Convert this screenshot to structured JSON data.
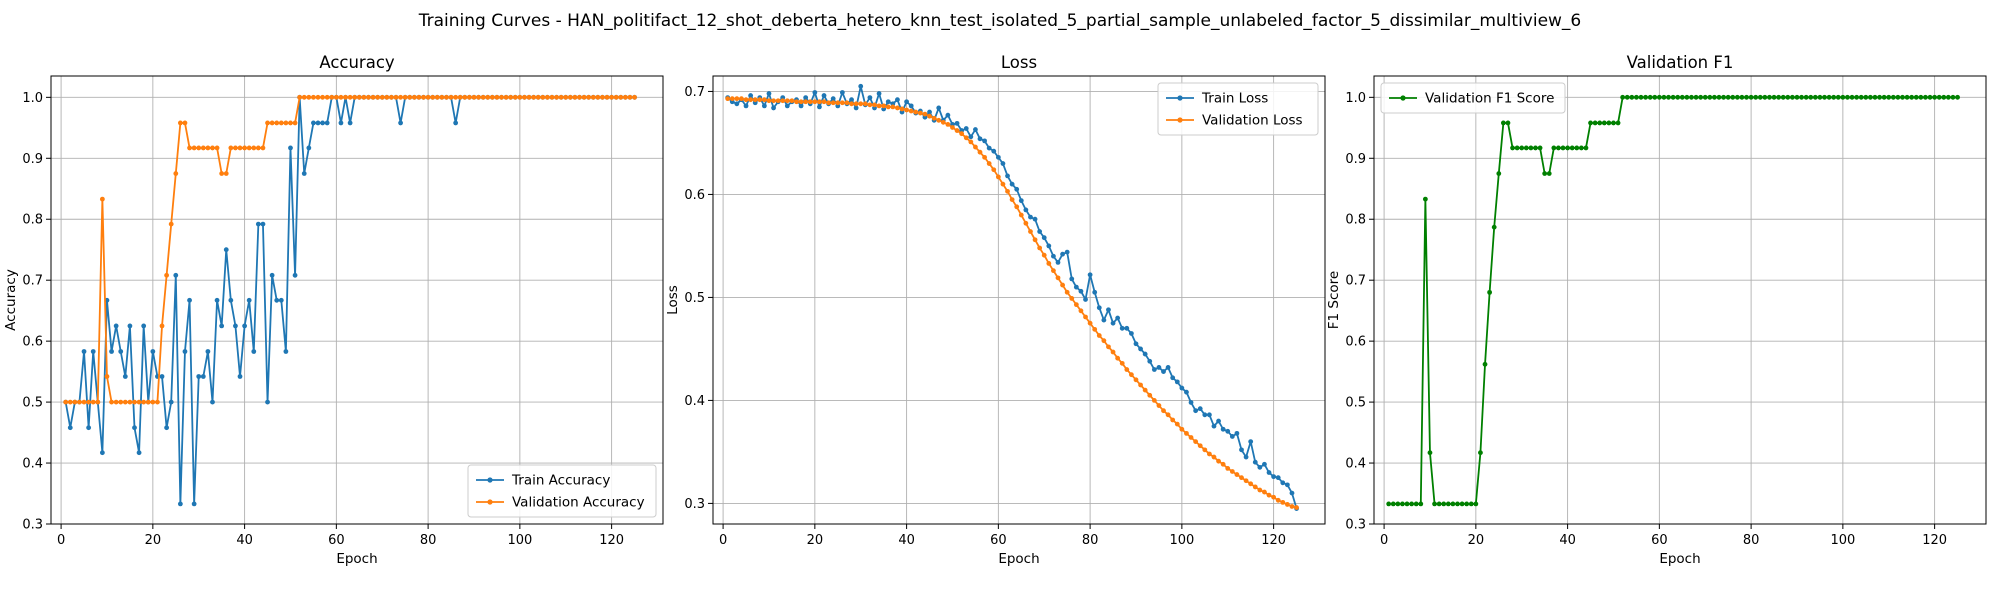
{
  "figure": {
    "title": "Training Curves - HAN_politifact_12_shot_deberta_hetero_knn_test_isolated_5_partial_sample_unlabeled_factor_5_dissimilar_multiview_6"
  },
  "chart_data": [
    {
      "type": "line",
      "title": "Accuracy",
      "xlabel": "Epoch",
      "ylabel": "Accuracy",
      "xlim": [
        -2.2,
        131.2
      ],
      "ylim": [
        0.3,
        1.035
      ],
      "xticks": [
        0,
        20,
        40,
        60,
        80,
        100,
        120
      ],
      "yticks": [
        0.3,
        0.4,
        0.5,
        0.6,
        0.7,
        0.8,
        0.9,
        1.0
      ],
      "ytick_labels": [
        "0.3",
        "0.4",
        "0.5",
        "0.6",
        "0.7",
        "0.8",
        "0.9",
        "1.0"
      ],
      "grid": true,
      "legend_position": "lower-right",
      "x_start": 1,
      "series": [
        {
          "name": "Train Accuracy",
          "color": "#1f77b4",
          "values": [
            0.5,
            0.458,
            0.5,
            0.5,
            0.583,
            0.458,
            0.583,
            0.5,
            0.417,
            0.667,
            0.583,
            0.625,
            0.583,
            0.542,
            0.625,
            0.458,
            0.417,
            0.625,
            0.5,
            0.583,
            0.542,
            0.542,
            0.458,
            0.5,
            0.708,
            0.333,
            0.583,
            0.667,
            0.333,
            0.542,
            0.542,
            0.583,
            0.5,
            0.667,
            0.625,
            0.75,
            0.667,
            0.625,
            0.542,
            0.625,
            0.667,
            0.583,
            0.792,
            0.792,
            0.5,
            0.708,
            0.667,
            0.667,
            0.583,
            0.917,
            0.708,
            1.0,
            0.875,
            0.917,
            0.958,
            0.958,
            0.958,
            0.958,
            1.0,
            1.0,
            0.958,
            1.0,
            0.958,
            1.0,
            1.0,
            1.0,
            1.0,
            1.0,
            1.0,
            1.0,
            1.0,
            1.0,
            1.0,
            0.958,
            1.0,
            1.0,
            1.0,
            1.0,
            1.0,
            1.0,
            1.0,
            1.0,
            1.0,
            1.0,
            1.0,
            0.958,
            1.0,
            1.0,
            1.0,
            1.0,
            1.0,
            1.0,
            1.0,
            1.0,
            1.0,
            1.0,
            1.0,
            1.0,
            1.0,
            1.0,
            1.0,
            1.0,
            1.0,
            1.0,
            1.0,
            1.0,
            1.0,
            1.0,
            1.0,
            1.0,
            1.0,
            1.0,
            1.0,
            1.0,
            1.0,
            1.0,
            1.0,
            1.0,
            1.0,
            1.0,
            1.0,
            1.0,
            1.0,
            1.0,
            1.0
          ]
        },
        {
          "name": "Validation Accuracy",
          "color": "#ff7f0e",
          "values": [
            0.5,
            0.5,
            0.5,
            0.5,
            0.5,
            0.5,
            0.5,
            0.5,
            0.833,
            0.542,
            0.5,
            0.5,
            0.5,
            0.5,
            0.5,
            0.5,
            0.5,
            0.5,
            0.5,
            0.5,
            0.5,
            0.625,
            0.708,
            0.792,
            0.875,
            0.958,
            0.958,
            0.917,
            0.917,
            0.917,
            0.917,
            0.917,
            0.917,
            0.917,
            0.875,
            0.875,
            0.917,
            0.917,
            0.917,
            0.917,
            0.917,
            0.917,
            0.917,
            0.917,
            0.958,
            0.958,
            0.958,
            0.958,
            0.958,
            0.958,
            0.958,
            1.0,
            1.0,
            1.0,
            1.0,
            1.0,
            1.0,
            1.0,
            1.0,
            1.0,
            1.0,
            1.0,
            1.0,
            1.0,
            1.0,
            1.0,
            1.0,
            1.0,
            1.0,
            1.0,
            1.0,
            1.0,
            1.0,
            1.0,
            1.0,
            1.0,
            1.0,
            1.0,
            1.0,
            1.0,
            1.0,
            1.0,
            1.0,
            1.0,
            1.0,
            1.0,
            1.0,
            1.0,
            1.0,
            1.0,
            1.0,
            1.0,
            1.0,
            1.0,
            1.0,
            1.0,
            1.0,
            1.0,
            1.0,
            1.0,
            1.0,
            1.0,
            1.0,
            1.0,
            1.0,
            1.0,
            1.0,
            1.0,
            1.0,
            1.0,
            1.0,
            1.0,
            1.0,
            1.0,
            1.0,
            1.0,
            1.0,
            1.0,
            1.0,
            1.0,
            1.0,
            1.0,
            1.0,
            1.0,
            1.0
          ]
        }
      ]
    },
    {
      "type": "line",
      "title": "Loss",
      "xlabel": "Epoch",
      "ylabel": "Loss",
      "xlim": [
        -2.2,
        131.2
      ],
      "ylim": [
        0.28,
        0.715
      ],
      "xticks": [
        0,
        20,
        40,
        60,
        80,
        100,
        120
      ],
      "yticks": [
        0.3,
        0.4,
        0.5,
        0.6,
        0.7
      ],
      "ytick_labels": [
        "0.3",
        "0.4",
        "0.5",
        "0.6",
        "0.7"
      ],
      "grid": true,
      "legend_position": "upper-right",
      "x_start": 1,
      "series": [
        {
          "name": "Train Loss",
          "color": "#1f77b4",
          "values": [
            0.694,
            0.69,
            0.688,
            0.692,
            0.686,
            0.696,
            0.689,
            0.694,
            0.686,
            0.698,
            0.684,
            0.69,
            0.694,
            0.686,
            0.69,
            0.692,
            0.686,
            0.694,
            0.688,
            0.699,
            0.685,
            0.696,
            0.688,
            0.693,
            0.686,
            0.699,
            0.688,
            0.692,
            0.684,
            0.705,
            0.687,
            0.694,
            0.684,
            0.698,
            0.683,
            0.69,
            0.688,
            0.692,
            0.68,
            0.69,
            0.686,
            0.679,
            0.681,
            0.675,
            0.68,
            0.672,
            0.684,
            0.672,
            0.677,
            0.668,
            0.669,
            0.662,
            0.664,
            0.656,
            0.663,
            0.654,
            0.652,
            0.645,
            0.642,
            0.636,
            0.63,
            0.618,
            0.61,
            0.605,
            0.594,
            0.585,
            0.578,
            0.576,
            0.564,
            0.558,
            0.55,
            0.54,
            0.534,
            0.542,
            0.544,
            0.518,
            0.51,
            0.506,
            0.498,
            0.522,
            0.505,
            0.49,
            0.478,
            0.488,
            0.475,
            0.48,
            0.47,
            0.47,
            0.465,
            0.455,
            0.45,
            0.445,
            0.438,
            0.43,
            0.432,
            0.428,
            0.432,
            0.422,
            0.418,
            0.412,
            0.408,
            0.398,
            0.39,
            0.392,
            0.386,
            0.386,
            0.375,
            0.38,
            0.372,
            0.37,
            0.365,
            0.368,
            0.352,
            0.345,
            0.36,
            0.34,
            0.335,
            0.338,
            0.33,
            0.326,
            0.325,
            0.32,
            0.318,
            0.31,
            0.295
          ]
        },
        {
          "name": "Validation Loss",
          "color": "#ff7f0e",
          "values": [
            0.693,
            0.693,
            0.693,
            0.693,
            0.692,
            0.692,
            0.692,
            0.692,
            0.692,
            0.691,
            0.691,
            0.691,
            0.691,
            0.691,
            0.691,
            0.69,
            0.69,
            0.69,
            0.69,
            0.69,
            0.69,
            0.69,
            0.689,
            0.689,
            0.689,
            0.689,
            0.689,
            0.688,
            0.688,
            0.688,
            0.688,
            0.687,
            0.687,
            0.686,
            0.686,
            0.685,
            0.685,
            0.684,
            0.683,
            0.682,
            0.681,
            0.68,
            0.679,
            0.678,
            0.676,
            0.674,
            0.672,
            0.67,
            0.668,
            0.665,
            0.662,
            0.659,
            0.655,
            0.651,
            0.646,
            0.641,
            0.636,
            0.63,
            0.624,
            0.617,
            0.61,
            0.603,
            0.595,
            0.588,
            0.58,
            0.572,
            0.564,
            0.556,
            0.548,
            0.541,
            0.533,
            0.526,
            0.519,
            0.512,
            0.505,
            0.499,
            0.493,
            0.487,
            0.481,
            0.475,
            0.469,
            0.463,
            0.458,
            0.452,
            0.447,
            0.441,
            0.436,
            0.43,
            0.425,
            0.42,
            0.415,
            0.41,
            0.405,
            0.4,
            0.395,
            0.39,
            0.386,
            0.381,
            0.377,
            0.372,
            0.368,
            0.364,
            0.36,
            0.356,
            0.352,
            0.348,
            0.345,
            0.341,
            0.338,
            0.334,
            0.331,
            0.328,
            0.325,
            0.322,
            0.319,
            0.316,
            0.313,
            0.311,
            0.308,
            0.306,
            0.303,
            0.301,
            0.299,
            0.297,
            0.296
          ]
        }
      ]
    },
    {
      "type": "line",
      "title": "Validation F1",
      "xlabel": "Epoch",
      "ylabel": "F1 Score",
      "xlim": [
        -2.2,
        131.2
      ],
      "ylim": [
        0.3,
        1.035
      ],
      "xticks": [
        0,
        20,
        40,
        60,
        80,
        100,
        120
      ],
      "yticks": [
        0.3,
        0.4,
        0.5,
        0.6,
        0.7,
        0.8,
        0.9,
        1.0
      ],
      "ytick_labels": [
        "0.3",
        "0.4",
        "0.5",
        "0.6",
        "0.7",
        "0.8",
        "0.9",
        "1.0"
      ],
      "grid": true,
      "legend_position": "upper-left",
      "x_start": 1,
      "series": [
        {
          "name": "Validation F1 Score",
          "color": "#008000",
          "values": [
            0.333,
            0.333,
            0.333,
            0.333,
            0.333,
            0.333,
            0.333,
            0.333,
            0.833,
            0.417,
            0.333,
            0.333,
            0.333,
            0.333,
            0.333,
            0.333,
            0.333,
            0.333,
            0.333,
            0.333,
            0.417,
            0.562,
            0.68,
            0.787,
            0.875,
            0.958,
            0.958,
            0.917,
            0.917,
            0.917,
            0.917,
            0.917,
            0.917,
            0.917,
            0.875,
            0.875,
            0.917,
            0.917,
            0.917,
            0.917,
            0.917,
            0.917,
            0.917,
            0.917,
            0.958,
            0.958,
            0.958,
            0.958,
            0.958,
            0.958,
            0.958,
            1.0,
            1.0,
            1.0,
            1.0,
            1.0,
            1.0,
            1.0,
            1.0,
            1.0,
            1.0,
            1.0,
            1.0,
            1.0,
            1.0,
            1.0,
            1.0,
            1.0,
            1.0,
            1.0,
            1.0,
            1.0,
            1.0,
            1.0,
            1.0,
            1.0,
            1.0,
            1.0,
            1.0,
            1.0,
            1.0,
            1.0,
            1.0,
            1.0,
            1.0,
            1.0,
            1.0,
            1.0,
            1.0,
            1.0,
            1.0,
            1.0,
            1.0,
            1.0,
            1.0,
            1.0,
            1.0,
            1.0,
            1.0,
            1.0,
            1.0,
            1.0,
            1.0,
            1.0,
            1.0,
            1.0,
            1.0,
            1.0,
            1.0,
            1.0,
            1.0,
            1.0,
            1.0,
            1.0,
            1.0,
            1.0,
            1.0,
            1.0,
            1.0,
            1.0,
            1.0,
            1.0,
            1.0,
            1.0,
            1.0
          ]
        }
      ]
    }
  ]
}
